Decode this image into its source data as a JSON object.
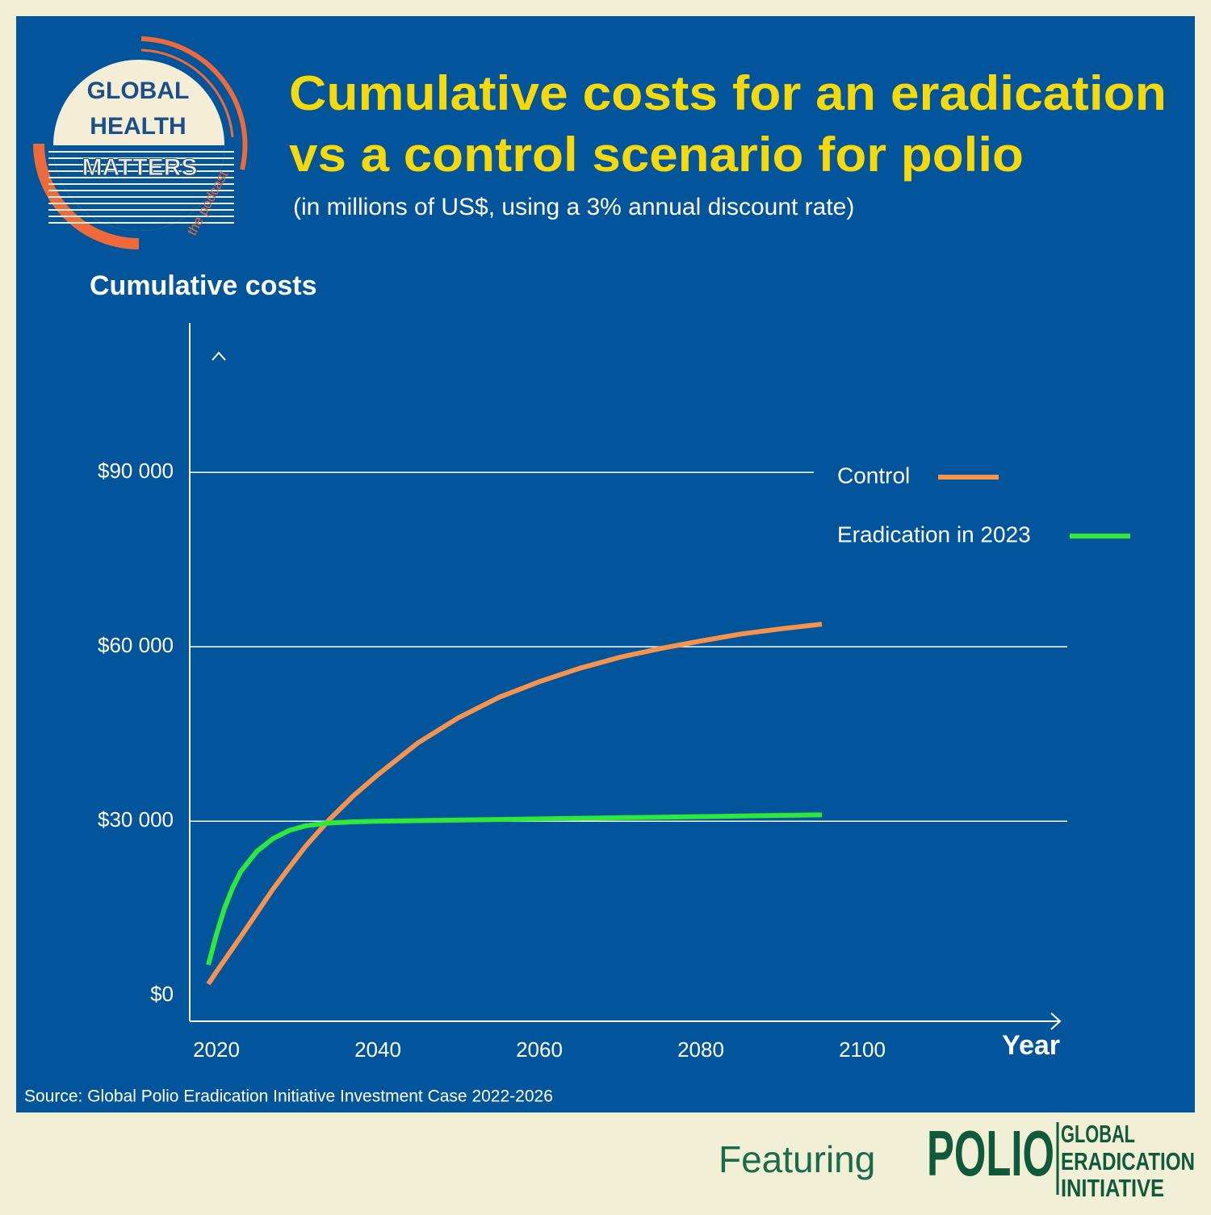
{
  "logo": {
    "line1": "GLOBAL",
    "line2": "HEALTH",
    "line3": "MATTERS",
    "tagline": "the podcast"
  },
  "chart_data": {
    "type": "line",
    "title": [
      "Cumulative costs for an eradication",
      "vs a control scenario for polio"
    ],
    "subtitle": "(in millions of US$, using a 3% annual discount rate)",
    "y_label": "Cumulative costs",
    "x_label": "Year",
    "x": [
      2019,
      2020,
      2021,
      2022,
      2023,
      2025,
      2027,
      2029,
      2031,
      2034,
      2037,
      2040,
      2045,
      2050,
      2055,
      2060,
      2065,
      2070,
      2075,
      2080,
      2085,
      2090,
      2095
    ],
    "series": [
      {
        "name": "Control",
        "color": "#f7934c",
        "values": [
          2000,
          4100,
          6100,
          8100,
          10100,
          14200,
          18300,
          22000,
          25600,
          30300,
          34400,
          38000,
          43500,
          47800,
          51300,
          54000,
          56300,
          58200,
          59700,
          61000,
          62200,
          63100,
          63900
        ]
      },
      {
        "name": "Eradication in 2023",
        "color": "#2ee83a",
        "values": [
          5300,
          10500,
          15000,
          18500,
          21300,
          24800,
          27000,
          28400,
          29200,
          29700,
          29900,
          30000,
          30100,
          30200,
          30300,
          30400,
          30500,
          30600,
          30700,
          30800,
          30900,
          31000,
          31100
        ]
      }
    ],
    "xlim": [
      2016.7,
      2124.5
    ],
    "xticks": [
      2020,
      2040,
      2060,
      2080,
      2100
    ],
    "ylim": [
      -4400,
      115700
    ],
    "yticks": [
      {
        "value": 0,
        "label": "$0"
      },
      {
        "value": 30000,
        "label": "$30 000"
      },
      {
        "value": 60000,
        "label": "$60 000"
      },
      {
        "value": 90000,
        "label": "$90 000"
      }
    ],
    "grid": true,
    "legend": "right",
    "source": "Source: Global Polio Eradication Initiative Investment Case 2022-2026"
  },
  "footer": {
    "featuring": "Featuring",
    "logo_polio": "POLIO",
    "logo_line1": "GLOBAL",
    "logo_line2": "ERADICATION",
    "logo_line3": "INITIATIVE"
  }
}
